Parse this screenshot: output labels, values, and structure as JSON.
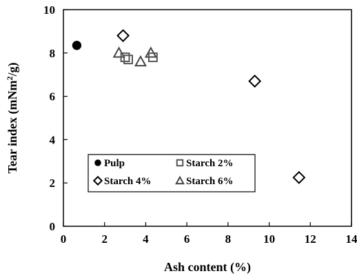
{
  "chart_data": {
    "type": "scatter",
    "xlabel": "Ash content (%)",
    "ylabel_main": "Tear index (mNm",
    "ylabel_sup": "2",
    "ylabel_tail": "/g)",
    "xlim": [
      0,
      14
    ],
    "ylim": [
      0,
      10
    ],
    "xticks": [
      "0",
      "2",
      "4",
      "6",
      "8",
      "10",
      "12",
      "14"
    ],
    "yticks": [
      "0",
      "2",
      "4",
      "6",
      "8",
      "10"
    ],
    "grid": false,
    "legend_placement": "lower-left",
    "series": [
      {
        "name": "Pulp",
        "marker": "circle-filled",
        "points": [
          [
            0.65,
            8.35
          ]
        ]
      },
      {
        "name": "Starch 2%",
        "marker": "square-open",
        "points": [
          [
            3.0,
            7.8
          ],
          [
            3.15,
            7.7
          ],
          [
            4.35,
            7.8
          ]
        ]
      },
      {
        "name": "Starch 4%",
        "marker": "diamond-open",
        "points": [
          [
            2.9,
            8.8
          ],
          [
            9.3,
            6.7
          ],
          [
            11.45,
            2.25
          ]
        ]
      },
      {
        "name": "Starch 6%",
        "marker": "triangle-open",
        "points": [
          [
            2.7,
            8.0
          ],
          [
            3.75,
            7.6
          ],
          [
            4.25,
            8.0
          ]
        ]
      }
    ]
  }
}
